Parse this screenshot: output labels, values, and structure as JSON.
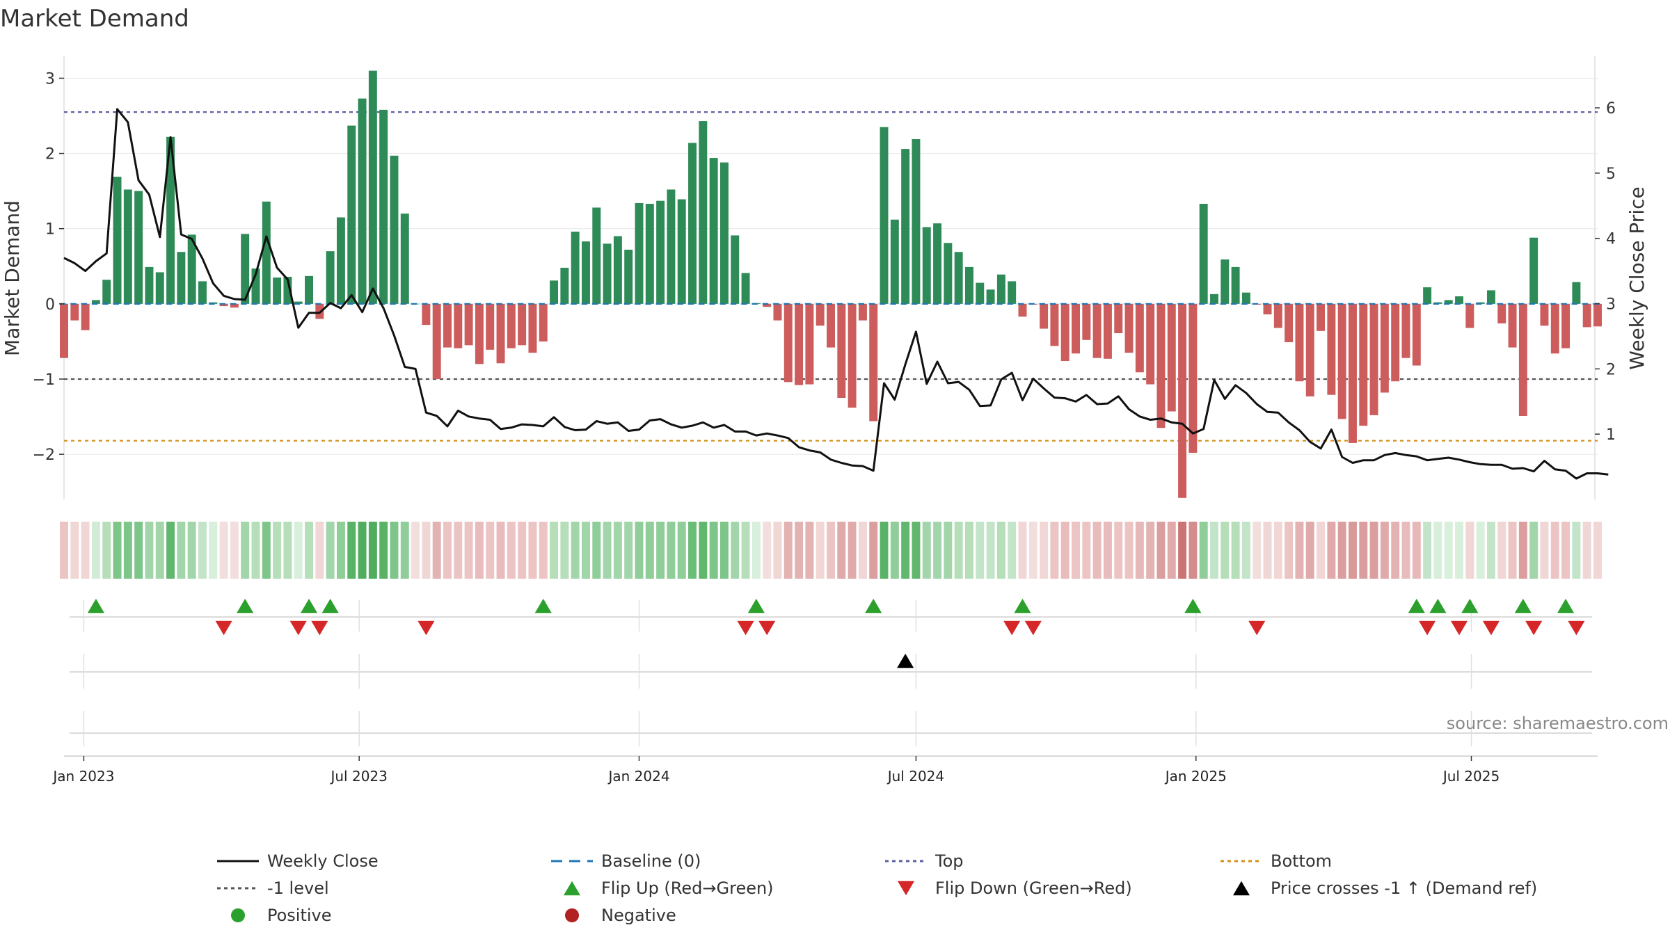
{
  "chart_data": {
    "type": "bar",
    "title": "Market Demand",
    "ylabel": "Market Demand",
    "y2label": "Weekly Close Price",
    "ylim": [
      -2.6,
      3.3
    ],
    "y2lim": [
      0.0,
      6.8
    ],
    "yticks": [
      3,
      2,
      1,
      0,
      -1,
      -2
    ],
    "ytick_labels": [
      "3",
      "2",
      "1",
      "0",
      "−1",
      "−2"
    ],
    "y2ticks": [
      6,
      5,
      4,
      3,
      2,
      1
    ],
    "y2tick_labels": [
      "6",
      "5",
      "4",
      "3",
      "2",
      "1"
    ],
    "top_level": 2.55,
    "bottom_level": -1.82,
    "minus_one_level": -1.0,
    "x_start": "2022-12-19",
    "x_end": "2025-09-22",
    "xtick_dates": [
      "2023-01-01",
      "2023-07-01",
      "2024-01-01",
      "2024-07-01",
      "2025-01-01",
      "2025-07-01"
    ],
    "xtick_labels": [
      "Jan 2023",
      "Jul 2023",
      "Jan 2024",
      "Jul 2024",
      "Jan 2025",
      "Jul 2025"
    ],
    "bar_start": "2022-12-19",
    "bar_interval_days": 7,
    "demand": [
      -0.72,
      -0.22,
      -0.35,
      0.05,
      0.32,
      1.69,
      1.52,
      1.5,
      0.49,
      0.42,
      2.22,
      0.69,
      0.92,
      0.3,
      0.02,
      -0.03,
      -0.05,
      0.93,
      0.47,
      1.36,
      0.35,
      0.36,
      0.03,
      0.37,
      -0.2,
      0.7,
      1.15,
      2.37,
      2.73,
      3.1,
      2.58,
      1.97,
      1.2,
      0.0,
      -0.28,
      -1.0,
      -0.58,
      -0.59,
      -0.55,
      -0.8,
      -0.61,
      -0.79,
      -0.59,
      -0.55,
      -0.65,
      -0.5,
      0.31,
      0.48,
      0.96,
      0.83,
      1.28,
      0.8,
      0.9,
      0.72,
      1.34,
      1.33,
      1.37,
      1.52,
      1.39,
      2.14,
      2.43,
      1.94,
      1.88,
      0.91,
      0.41,
      0.01,
      -0.04,
      -0.22,
      -1.04,
      -1.08,
      -1.07,
      -0.29,
      -0.58,
      -1.25,
      -1.38,
      -0.22,
      -1.56,
      2.35,
      1.12,
      2.06,
      2.19,
      1.02,
      1.07,
      0.81,
      0.69,
      0.49,
      0.28,
      0.19,
      0.39,
      0.3,
      -0.17,
      -0.01,
      -0.33,
      -0.56,
      -0.76,
      -0.66,
      -0.48,
      -0.72,
      -0.73,
      -0.39,
      -0.65,
      -0.91,
      -1.07,
      -1.65,
      -1.43,
      -2.58,
      -1.98,
      1.33,
      0.13,
      0.59,
      0.49,
      0.15,
      -0.01,
      -0.14,
      -0.32,
      -0.51,
      -1.03,
      -1.23,
      -0.36,
      -1.21,
      -1.53,
      -1.85,
      -1.62,
      -1.48,
      -1.18,
      -1.03,
      -0.72,
      -0.82,
      0.22,
      0.02,
      0.05,
      0.1,
      -0.32,
      0.02,
      0.18,
      -0.26,
      -0.58,
      -1.49,
      0.88,
      -0.29,
      -0.66,
      -0.59,
      0.29,
      -0.31,
      -0.3
    ],
    "close": [
      3.7,
      3.62,
      3.5,
      3.65,
      3.77,
      5.98,
      5.78,
      4.89,
      4.67,
      4.02,
      5.55,
      4.06,
      3.99,
      3.69,
      3.31,
      3.12,
      3.07,
      3.06,
      3.45,
      4.03,
      3.55,
      3.37,
      2.63,
      2.86,
      2.86,
      3.01,
      2.93,
      3.13,
      2.87,
      3.23,
      2.93,
      2.51,
      2.03,
      2.0,
      1.33,
      1.28,
      1.12,
      1.36,
      1.27,
      1.24,
      1.22,
      1.08,
      1.1,
      1.15,
      1.14,
      1.12,
      1.26,
      1.11,
      1.06,
      1.07,
      1.2,
      1.16,
      1.18,
      1.05,
      1.07,
      1.21,
      1.23,
      1.15,
      1.1,
      1.13,
      1.18,
      1.1,
      1.14,
      1.04,
      1.04,
      0.98,
      1.01,
      0.98,
      0.94,
      0.8,
      0.75,
      0.72,
      0.61,
      0.56,
      0.52,
      0.51,
      0.44,
      1.78,
      1.53,
      2.07,
      2.57,
      1.77,
      2.11,
      1.78,
      1.8,
      1.68,
      1.43,
      1.44,
      1.84,
      1.94,
      1.52,
      1.85,
      1.7,
      1.56,
      1.55,
      1.5,
      1.6,
      1.46,
      1.47,
      1.58,
      1.38,
      1.27,
      1.22,
      1.24,
      1.18,
      1.16,
      1.01,
      1.08,
      1.83,
      1.54,
      1.75,
      1.63,
      1.46,
      1.34,
      1.33,
      1.18,
      1.06,
      0.88,
      0.78,
      1.07,
      0.65,
      0.56,
      0.6,
      0.6,
      0.68,
      0.71,
      0.68,
      0.66,
      0.6,
      0.62,
      0.64,
      0.61,
      0.57,
      0.54,
      0.53,
      0.53,
      0.47,
      0.48,
      0.43,
      0.59,
      0.46,
      0.44,
      0.32,
      0.4,
      0.4,
      0.38
    ],
    "strip_colors": [
      "#ecc4c4",
      "#f1d6d6",
      "#f1d6d6",
      "#d1ebd6",
      "#b5deb9",
      "#7ec58a",
      "#7ec58a",
      "#7ec58a",
      "#a2d6aa",
      "#a2d6aa",
      "#62b76f",
      "#a2d6aa",
      "#a2d6aa",
      "#c4e4ca",
      "#d8efdc",
      "#f3dede",
      "#f3dede",
      "#a2d6aa",
      "#b5deb9",
      "#7ec58a",
      "#b5deb9",
      "#b5deb9",
      "#d8efdc",
      "#b5deb9",
      "#f1d6d6",
      "#a2d6aa",
      "#8fcd99",
      "#59b366",
      "#4fad5d",
      "#4fad5d",
      "#59b366",
      "#7ec58a",
      "#8fcd99",
      "#f3dede",
      "#f1d6d6",
      "#e3b3b3",
      "#ecc4c4",
      "#ecc4c4",
      "#ecc4c4",
      "#e8bcbc",
      "#ecc4c4",
      "#e8bcbc",
      "#ecc4c4",
      "#ecc4c4",
      "#ecc4c4",
      "#ecc4c4",
      "#b5deb9",
      "#b5deb9",
      "#a2d6aa",
      "#a2d6aa",
      "#8fcd99",
      "#a2d6aa",
      "#a2d6aa",
      "#a2d6aa",
      "#8fcd99",
      "#8fcd99",
      "#8fcd99",
      "#8fcd99",
      "#8fcd99",
      "#6cbd78",
      "#62b76f",
      "#7ec58a",
      "#7ec58a",
      "#a2d6aa",
      "#b5deb9",
      "#d8efdc",
      "#f3dede",
      "#f1d6d6",
      "#e3b3b3",
      "#e3b3b3",
      "#e3b3b3",
      "#f1d6d6",
      "#ecc4c4",
      "#e0aaaa",
      "#e0aaaa",
      "#f1d6d6",
      "#db9e9e",
      "#59b366",
      "#8fcd99",
      "#62b76f",
      "#62b76f",
      "#a2d6aa",
      "#a2d6aa",
      "#a2d6aa",
      "#b5deb9",
      "#b5deb9",
      "#c4e4ca",
      "#c4e4ca",
      "#b5deb9",
      "#c4e4ca",
      "#f1d6d6",
      "#f3dede",
      "#f1d6d6",
      "#ecc4c4",
      "#e8bcbc",
      "#ecc4c4",
      "#ecc4c4",
      "#e8bcbc",
      "#e8bcbc",
      "#ecc4c4",
      "#ecc4c4",
      "#e6b8b8",
      "#e3b3b3",
      "#db9e9e",
      "#e0aaaa",
      "#cc7474",
      "#d58c8c",
      "#8fcd99",
      "#c4e4ca",
      "#b5deb9",
      "#b5deb9",
      "#c4e4ca",
      "#f3dede",
      "#f1d6d6",
      "#f1d6d6",
      "#ecc4c4",
      "#e3b3b3",
      "#e0aaaa",
      "#f1d6d6",
      "#e0aaaa",
      "#db9e9e",
      "#d99999",
      "#db9e9e",
      "#db9e9e",
      "#e0aaaa",
      "#e3b3b3",
      "#e8bcbc",
      "#e6b8b8",
      "#c4e4ca",
      "#d8efdc",
      "#d8efdc",
      "#d8efdc",
      "#f1d6d6",
      "#d8efdc",
      "#c4e4ca",
      "#f1d6d6",
      "#ecc4c4",
      "#db9e9e",
      "#a2d6aa",
      "#f1d6d6",
      "#ecc4c4",
      "#ecc4c4",
      "#c4e4ca",
      "#f1d6d6",
      "#f1d6d6"
    ],
    "flip_up_weeks": [
      3,
      17,
      23,
      25,
      45,
      65,
      76,
      90,
      106,
      127,
      129,
      132,
      137,
      141
    ],
    "flip_down_weeks": [
      15,
      22,
      24,
      34,
      64,
      66,
      89,
      91,
      112,
      128,
      131,
      134,
      138,
      142
    ],
    "cross_weeks": [
      79
    ],
    "source": "source: sharemaestro.com",
    "legend": [
      {
        "label": "Weekly Close",
        "symbol": "line",
        "color": "#111111"
      },
      {
        "label": "Baseline (0)",
        "symbol": "dash",
        "color": "#1f77b4"
      },
      {
        "label": "Top",
        "symbol": "dot",
        "color": "#5b5ea6"
      },
      {
        "label": "Bottom",
        "symbol": "dot",
        "color": "#d4901a"
      },
      {
        "label": "-1 level",
        "symbol": "dot",
        "color": "#555555"
      },
      {
        "label": "Flip Up (Red→Green)",
        "symbol": "triangle-up",
        "color": "#2ca02c"
      },
      {
        "label": "Flip Down (Green→Red)",
        "symbol": "triangle-down",
        "color": "#d62728"
      },
      {
        "label": "Price crosses -1 ↑ (Demand ref)",
        "symbol": "triangle-up",
        "color": "#000000"
      },
      {
        "label": "Positive",
        "symbol": "circle",
        "color": "#2ca02c"
      },
      {
        "label": "Negative",
        "symbol": "circle",
        "color": "#b22222"
      }
    ],
    "colors": {
      "positive_bar": "#2e8b57",
      "negative_bar": "#cd5c5c",
      "close_line": "#111111",
      "baseline": "#1f77b4",
      "top": "#5b5ea6",
      "bottom": "#d4901a",
      "minus_one": "#555555",
      "flip_up": "#2ca02c",
      "flip_down": "#d62728",
      "cross": "#000000",
      "grid": "#e6e6e6",
      "spine": "#cccccc"
    }
  }
}
